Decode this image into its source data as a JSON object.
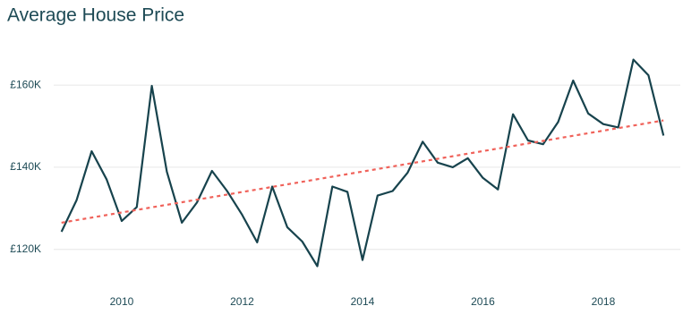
{
  "chart_data": {
    "type": "line",
    "title": "Average House Price",
    "x": [
      2009,
      2009.25,
      2009.5,
      2009.75,
      2010,
      2010.25,
      2010.5,
      2010.75,
      2011,
      2011.25,
      2011.5,
      2011.75,
      2012,
      2012.25,
      2012.5,
      2012.75,
      2013,
      2013.25,
      2013.5,
      2013.75,
      2014,
      2014.25,
      2014.5,
      2014.75,
      2015,
      2015.25,
      2015.5,
      2015.75,
      2016,
      2016.25,
      2016.5,
      2016.75,
      2017,
      2017.25,
      2017.5,
      2017.75,
      2018,
      2018.25,
      2018.5,
      2018.75,
      2019
    ],
    "values": [
      124.3,
      132.0,
      143.9,
      137.0,
      126.9,
      130.3,
      159.8,
      138.9,
      126.5,
      131.4,
      139.1,
      134.2,
      128.4,
      121.7,
      135.3,
      125.4,
      121.9,
      115.9,
      135.3,
      134.0,
      117.4,
      133.1,
      134.2,
      138.7,
      146.2,
      141.1,
      140.0,
      142.2,
      137.4,
      134.6,
      152.9,
      146.5,
      145.6,
      151.0,
      161.1,
      153.1,
      150.5,
      149.7,
      166.2,
      162.4,
      147.7
    ],
    "color": "#17434d",
    "trend": {
      "x": [
        2009,
        2019
      ],
      "values": [
        126.5,
        151.4
      ],
      "color": "#f0625a"
    },
    "xlim": [
      2008.87,
      2019.28
    ],
    "xticks": [
      2010,
      2012,
      2014,
      2016,
      2018
    ],
    "ylim": [
      111,
      172
    ],
    "yticks": [
      {
        "value": 120,
        "label": "£120K"
      },
      {
        "value": 140,
        "label": "£140K"
      },
      {
        "value": 160,
        "label": "£160K"
      }
    ],
    "grid": true
  }
}
